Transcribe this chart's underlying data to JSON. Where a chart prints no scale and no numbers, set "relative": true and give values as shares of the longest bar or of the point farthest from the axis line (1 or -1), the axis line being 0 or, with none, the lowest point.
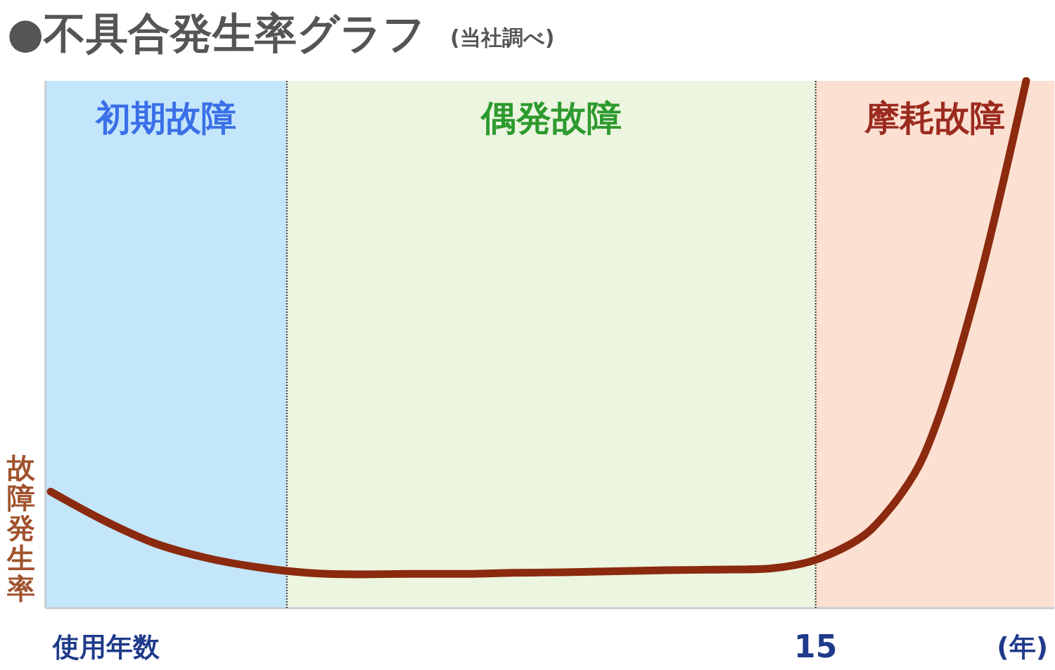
{
  "chart_data": {
    "type": "line",
    "title": "●不具合発生率グラフ",
    "subtitle": "(当社調べ)",
    "xlabel": "使用年数",
    "ylabel": "故障発生率",
    "annotations": [
      "初期故障",
      "偶発故障",
      "摩耗故障",
      "15",
      "(年)"
    ],
    "relative": true,
    "categories": [
      null,
      null,
      null,
      null,
      null,
      null,
      null,
      null,
      null,
      null,
      null,
      null,
      null,
      null,
      null,
      null,
      null,
      null,
      null,
      null
    ],
    "series": [
      {
        "color": "#8b2a0e",
        "values": [
          0.221,
          0.168,
          0.124,
          0.096,
          0.078,
          0.067,
          0.064,
          0.065,
          0.065,
          0.067,
          0.068,
          0.07,
          0.072,
          0.073,
          0.075,
          0.095,
          0.151,
          0.288,
          0.59,
          1
        ]
      }
    ],
    "grid": false,
    "line_style": "solid"
  }
}
